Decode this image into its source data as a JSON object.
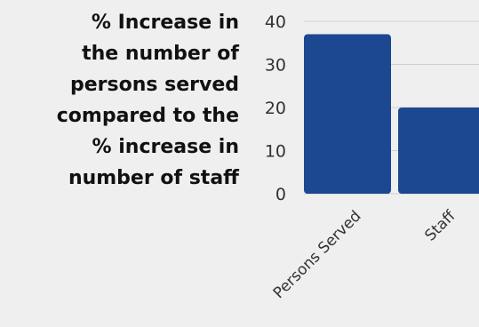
{
  "chart_data": {
    "type": "bar",
    "title": "% Increase in\nthe number of\npersons served\ncompared to the\n% increase in\nnumber of staff",
    "categories": [
      "Persons Served",
      "Staff"
    ],
    "values": [
      37,
      20
    ],
    "ylim": [
      0,
      40
    ],
    "yticks": [
      0,
      10,
      20,
      30,
      40
    ],
    "grid": true,
    "legend": "none",
    "bar_color": "#1b4890",
    "grid_color": "#cfcfcf"
  }
}
